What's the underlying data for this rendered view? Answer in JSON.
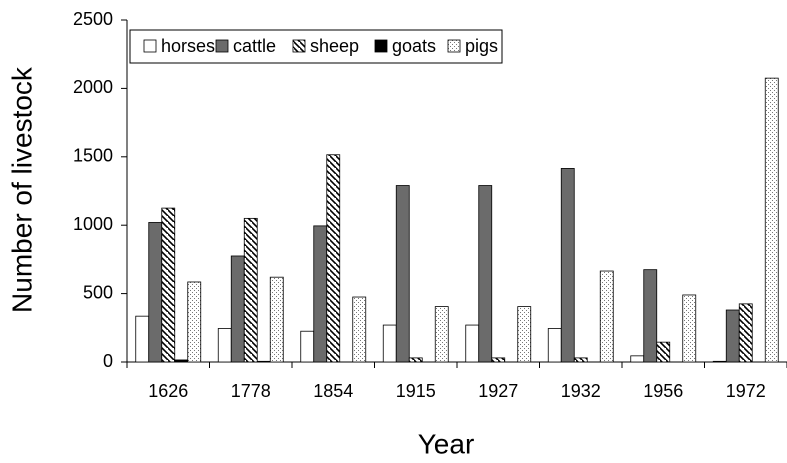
{
  "chart_data": {
    "type": "bar",
    "x_label": "Year",
    "y_label": "Number of livestock",
    "categories": [
      "1626",
      "1778",
      "1854",
      "1915",
      "1927",
      "1932",
      "1956",
      "1972"
    ],
    "series": [
      {
        "name": "horses",
        "color": "#ffffff",
        "pattern": "none",
        "values": [
          335,
          245,
          225,
          270,
          270,
          245,
          45,
          5
        ]
      },
      {
        "name": "cattle",
        "color": "#6b6b6b",
        "pattern": "none",
        "values": [
          1020,
          775,
          995,
          1290,
          1290,
          1415,
          675,
          380
        ]
      },
      {
        "name": "sheep",
        "color": "#000000",
        "pattern": "hatch",
        "values": [
          1125,
          1050,
          1515,
          30,
          30,
          30,
          145,
          425
        ]
      },
      {
        "name": "goats",
        "color": "#000000",
        "pattern": "none",
        "values": [
          15,
          5,
          0,
          0,
          0,
          0,
          0,
          0
        ]
      },
      {
        "name": "pigs",
        "color": "#777777",
        "pattern": "dots",
        "values": [
          585,
          620,
          475,
          405,
          405,
          665,
          490,
          2075
        ]
      }
    ],
    "ylim": [
      0,
      2500
    ],
    "yticks": [
      0,
      500,
      1000,
      1500,
      2000,
      2500
    ],
    "grid": false,
    "legend": "top-left"
  }
}
